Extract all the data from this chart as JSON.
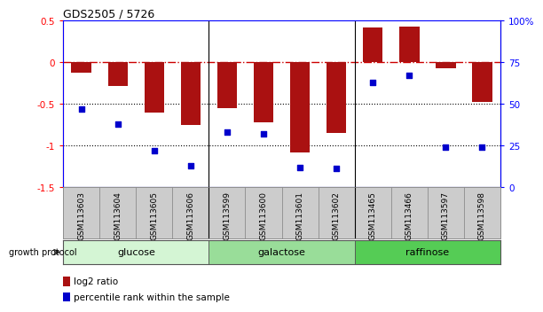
{
  "title": "GDS2505 / 5726",
  "samples": [
    "GSM113603",
    "GSM113604",
    "GSM113605",
    "GSM113606",
    "GSM113599",
    "GSM113600",
    "GSM113601",
    "GSM113602",
    "GSM113465",
    "GSM113466",
    "GSM113597",
    "GSM113598"
  ],
  "log2_ratio": [
    -0.12,
    -0.28,
    -0.6,
    -0.75,
    -0.55,
    -0.72,
    -1.08,
    -0.85,
    0.42,
    0.43,
    -0.07,
    -0.48
  ],
  "percentile_rank": [
    47,
    38,
    22,
    13,
    33,
    32,
    12,
    11,
    63,
    67,
    24,
    24
  ],
  "groups": [
    {
      "name": "glucose",
      "start": 0,
      "end": 4,
      "color": "#d4f5d4"
    },
    {
      "name": "galactose",
      "start": 4,
      "end": 8,
      "color": "#99dd99"
    },
    {
      "name": "raffinose",
      "start": 8,
      "end": 12,
      "color": "#55cc55"
    }
  ],
  "group_boundaries": [
    4,
    8
  ],
  "bar_color": "#aa1111",
  "dot_color": "#0000cc",
  "ylim_left": [
    -1.5,
    0.5
  ],
  "ylim_right": [
    0,
    100
  ],
  "yticks_left": [
    -1.5,
    -1.0,
    -0.5,
    0.0,
    0.5
  ],
  "yticks_right": [
    0,
    25,
    50,
    75,
    100
  ],
  "bar_width": 0.55,
  "bg_color": "#ffffff"
}
